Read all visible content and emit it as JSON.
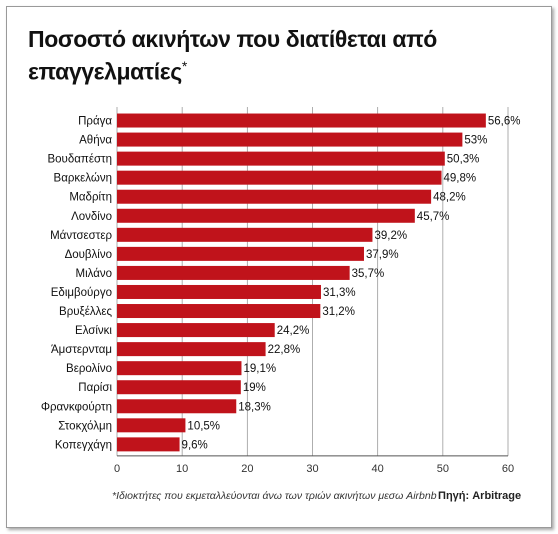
{
  "title": "Ποσοστό ακινήτων που διατίθεται από επαγγελματίες",
  "title_mark": "*",
  "footnote": "*Ιδιοκτήτες που εκμεταλλεύονται άνω των τριών ακινήτων μεσω Airbnb",
  "source": "Πηγή: Arbitrage",
  "chart_data": {
    "type": "bar",
    "orientation": "horizontal",
    "categories": [
      "Πράγα",
      "Αθήνα",
      "Βουδαπέστη",
      "Βαρκελώνη",
      "Μαδρίτη",
      "Λονδίνο",
      "Μάντσεστερ",
      "Δουβλίνο",
      "Μιλάνο",
      "Εδιμβούργο",
      "Βρυξέλλες",
      "Ελσίνκι",
      "Άμστερνταμ",
      "Βερολίνο",
      "Παρίσι",
      "Φρανκφούρτη",
      "Στοκχόλμη",
      "Κοπεγχάγη"
    ],
    "values": [
      56.6,
      53,
      50.3,
      49.8,
      48.2,
      45.7,
      39.2,
      37.9,
      35.7,
      31.3,
      31.2,
      24.2,
      22.8,
      19.1,
      19,
      18.3,
      10.5,
      9.6
    ],
    "value_labels": [
      "56,6%",
      "53%",
      "50,3%",
      "49,8%",
      "48,2%",
      "45,7%",
      "39,2%",
      "37,9%",
      "35,7%",
      "31,3%",
      "31,2%",
      "24,2%",
      "22,8%",
      "19,1%",
      "19%",
      "18,3%",
      "10,5%",
      "9,6%"
    ],
    "xlim": [
      0,
      60
    ],
    "xticks": [
      "0",
      "10",
      "20",
      "30",
      "40",
      "50",
      "60"
    ],
    "grid": true,
    "bar_color": "#c0131b"
  }
}
